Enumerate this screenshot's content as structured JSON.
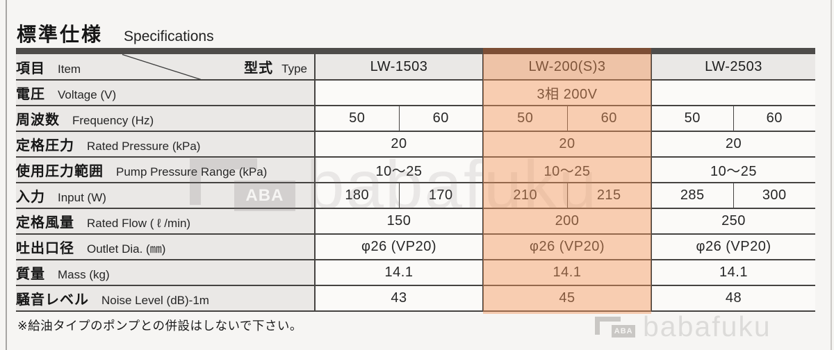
{
  "page": {
    "title_jp": "標準仕様",
    "title_en": "Specifications",
    "note": "※給油タイプのポンプとの併設はしないで下さい。",
    "watermark_text": "babafuku",
    "watermark_logo_text": "ABA"
  },
  "colors": {
    "highlight_overlay": "#f3965a",
    "highlight_header_bar": "#7c4e35",
    "header_bar": "#4e4c4a",
    "label_cell_bg": "#eae8e6",
    "data_cell_bg": "#fbfaf8",
    "border": "#454341",
    "page_bg": "#f6f5f3"
  },
  "table": {
    "header": {
      "item_jp": "項目",
      "item_en": "Item",
      "type_jp": "型式",
      "type_en": "Type",
      "models": [
        "LW-1503",
        "LW-200(S)3",
        "LW-2503"
      ],
      "highlighted_model": "LW-200(S)3"
    },
    "rows": [
      {
        "key": "voltage",
        "jp": "電圧",
        "en": "Voltage (V)",
        "cells": [
          {
            "text": "",
            "span": 2
          },
          {
            "text": "3相 200V",
            "span": 2
          },
          {
            "text": "",
            "span": 2
          }
        ]
      },
      {
        "key": "frequency",
        "jp": "周波数",
        "en": "Frequency (Hz)",
        "cells": [
          {
            "text": "50",
            "span": 1
          },
          {
            "text": "60",
            "span": 1
          },
          {
            "text": "50",
            "span": 1
          },
          {
            "text": "60",
            "span": 1
          },
          {
            "text": "50",
            "span": 1
          },
          {
            "text": "60",
            "span": 1
          }
        ]
      },
      {
        "key": "rated-pressure",
        "jp": "定格圧力",
        "en": "Rated Pressure (kPa)",
        "cells": [
          {
            "text": "20",
            "span": 2
          },
          {
            "text": "20",
            "span": 2
          },
          {
            "text": "20",
            "span": 2
          }
        ]
      },
      {
        "key": "pressure-range",
        "jp": "使用圧力範囲",
        "en": "Pump Pressure Range (kPa)",
        "cells": [
          {
            "text": "10〜25",
            "span": 2
          },
          {
            "text": "10〜25",
            "span": 2
          },
          {
            "text": "10〜25",
            "span": 2
          }
        ]
      },
      {
        "key": "input",
        "jp": "入力",
        "en": "Input (W)",
        "cells": [
          {
            "text": "180",
            "span": 1
          },
          {
            "text": "170",
            "span": 1
          },
          {
            "text": "210",
            "span": 1
          },
          {
            "text": "215",
            "span": 1
          },
          {
            "text": "285",
            "span": 1
          },
          {
            "text": "300",
            "span": 1
          }
        ]
      },
      {
        "key": "rated-flow",
        "jp": "定格風量",
        "en": "Rated Flow ( ℓ /min)",
        "cells": [
          {
            "text": "150",
            "span": 2
          },
          {
            "text": "200",
            "span": 2
          },
          {
            "text": "250",
            "span": 2
          }
        ]
      },
      {
        "key": "outlet-dia",
        "jp": "吐出口径",
        "en": "Outlet Dia. (㎜)",
        "cells": [
          {
            "text": "φ26 (VP20)",
            "span": 2
          },
          {
            "text": "φ26 (VP20)",
            "span": 2
          },
          {
            "text": "φ26 (VP20)",
            "span": 2
          }
        ]
      },
      {
        "key": "mass",
        "jp": "質量",
        "en": "Mass (kg)",
        "cells": [
          {
            "text": "14.1",
            "span": 2
          },
          {
            "text": "14.1",
            "span": 2
          },
          {
            "text": "14.1",
            "span": 2
          }
        ]
      },
      {
        "key": "noise-level",
        "jp": "騒音レベル",
        "en": "Noise Level (dB)-1m",
        "cells": [
          {
            "text": "43",
            "span": 2
          },
          {
            "text": "45",
            "span": 2
          },
          {
            "text": "48",
            "span": 2
          }
        ]
      }
    ]
  }
}
